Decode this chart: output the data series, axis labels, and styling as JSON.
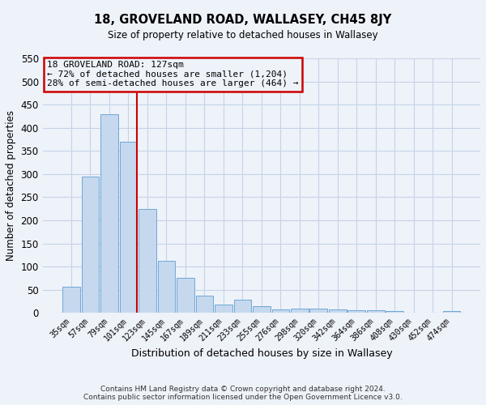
{
  "title": "18, GROVELAND ROAD, WALLASEY, CH45 8JY",
  "subtitle": "Size of property relative to detached houses in Wallasey",
  "xlabel": "Distribution of detached houses by size in Wallasey",
  "ylabel": "Number of detached properties",
  "bar_labels": [
    "35sqm",
    "57sqm",
    "79sqm",
    "101sqm",
    "123sqm",
    "145sqm",
    "167sqm",
    "189sqm",
    "211sqm",
    "233sqm",
    "255sqm",
    "276sqm",
    "298sqm",
    "320sqm",
    "342sqm",
    "364sqm",
    "386sqm",
    "408sqm",
    "430sqm",
    "452sqm",
    "474sqm"
  ],
  "bar_values": [
    57,
    295,
    430,
    370,
    225,
    113,
    75,
    38,
    18,
    28,
    15,
    8,
    10,
    10,
    7,
    5,
    5,
    4,
    0,
    0,
    4
  ],
  "bar_color": "#c5d8ee",
  "bar_edgecolor": "#6ea8d8",
  "ylim": [
    0,
    550
  ],
  "yticks": [
    0,
    50,
    100,
    150,
    200,
    250,
    300,
    350,
    400,
    450,
    500,
    550
  ],
  "vline_color": "#cc0000",
  "annotation_title": "18 GROVELAND ROAD: 127sqm",
  "annotation_line1": "← 72% of detached houses are smaller (1,204)",
  "annotation_line2": "28% of semi-detached houses are larger (464) →",
  "annotation_box_color": "#cc0000",
  "footer_line1": "Contains HM Land Registry data © Crown copyright and database right 2024.",
  "footer_line2": "Contains public sector information licensed under the Open Government Licence v3.0.",
  "background_color": "#eef2f9",
  "grid_color": "#c5d3e8"
}
